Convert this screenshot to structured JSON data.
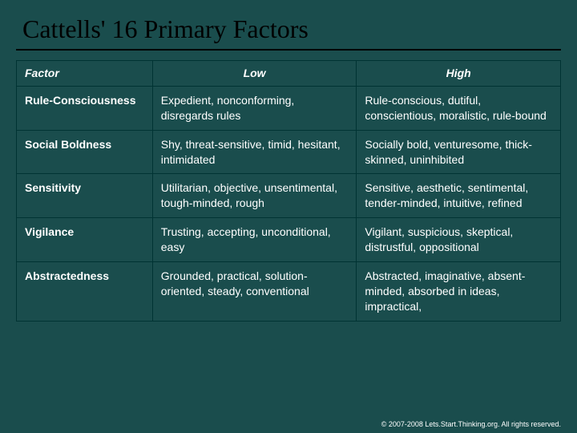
{
  "title": "Cattells' 16 Primary Factors",
  "columns": [
    "Factor",
    "Low",
    "High"
  ],
  "rows": [
    {
      "factor": "Rule-Consciousness",
      "low": "Expedient, nonconforming, disregards rules",
      "high": "Rule-conscious, dutiful, conscientious, moralistic, rule-bound"
    },
    {
      "factor": "Social Boldness",
      "low": "Shy, threat-sensitive, timid, hesitant, intimidated",
      "high": "Socially bold, venturesome, thick-skinned, uninhibited"
    },
    {
      "factor": "Sensitivity",
      "low": "Utilitarian, objective, unsentimental, tough-minded, rough",
      "high": "Sensitive, aesthetic, sentimental, tender-minded, intuitive, refined"
    },
    {
      "factor": "Vigilance",
      "low": "Trusting, accepting, unconditional, easy",
      "high": "Vigilant, suspicious, skeptical, distrustful, oppositional"
    },
    {
      "factor": "Abstractedness",
      "low": "Grounded, practical, solution-oriented, steady, conventional",
      "high": "Abstracted, imaginative, absent-minded, absorbed in ideas, impractical,"
    }
  ],
  "copyright": "© 2007-2008 Lets.Start.Thinking.org. All rights reserved.",
  "style": {
    "background_color": "#1a4d4d",
    "title_color": "#000000",
    "title_fontsize": 32,
    "title_fontfamily": "Times New Roman",
    "text_color": "#ffffff",
    "cell_fontsize": 14,
    "header_fontstyle": "italic",
    "border_color": "#003333",
    "copyright_fontsize": 9,
    "col_widths": [
      "25%",
      "37.5%",
      "37.5%"
    ]
  }
}
